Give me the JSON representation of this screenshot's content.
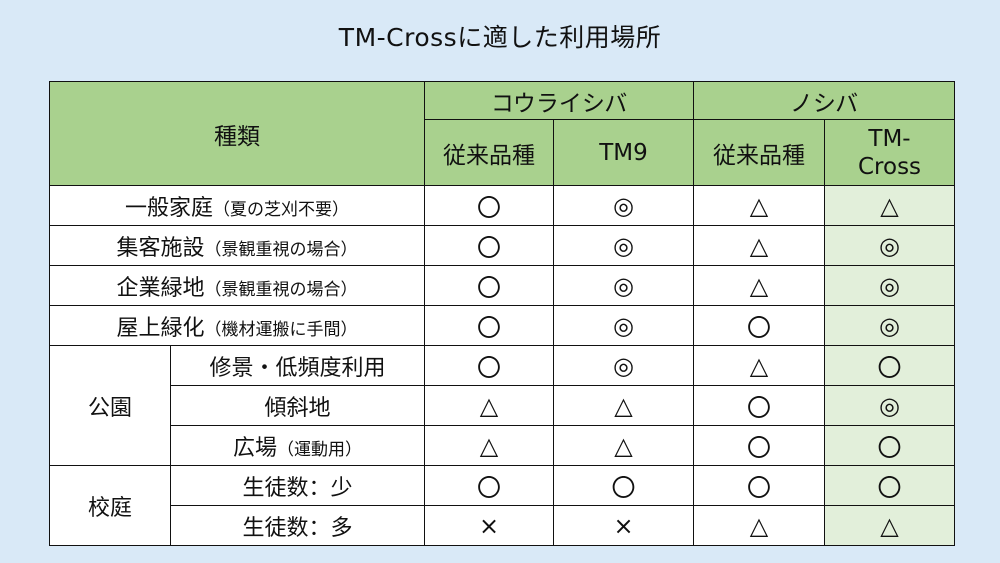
{
  "title": "TM-Crossに適した利用場所",
  "header": {
    "category_label": "種類",
    "group_korai": "コウライシバ",
    "group_noshiba": "ノシバ",
    "col_korai_conventional": "従来品種",
    "col_tm9": "TM9",
    "col_noshiba_conventional": "従来品種",
    "col_tmcross_line1": "TM-",
    "col_tmcross_line2": "Cross"
  },
  "rows": [
    {
      "label": "一般家庭",
      "note": "（夏の芝刈不要）",
      "values": [
        "〇",
        "◎",
        "△",
        "△"
      ]
    },
    {
      "label": "集客施設",
      "note": "（景観重視の場合）",
      "values": [
        "〇",
        "◎",
        "△",
        "◎"
      ]
    },
    {
      "label": "企業緑地",
      "note": "（景観重視の場合）",
      "values": [
        "〇",
        "◎",
        "△",
        "◎"
      ]
    },
    {
      "label": "屋上緑化",
      "note": "（機材運搬に手間）",
      "values": [
        "〇",
        "◎",
        "〇",
        "◎"
      ]
    }
  ],
  "park": {
    "group": "公園",
    "rows": [
      {
        "label": "修景・低頻度利用",
        "note": "",
        "values": [
          "〇",
          "◎",
          "△",
          "〇"
        ]
      },
      {
        "label": "傾斜地",
        "note": "",
        "values": [
          "△",
          "△",
          "〇",
          "◎"
        ]
      },
      {
        "label": "広場",
        "note": "（運動用）",
        "values": [
          "△",
          "△",
          "〇",
          "〇"
        ]
      }
    ]
  },
  "school": {
    "group": "校庭",
    "rows": [
      {
        "label": "生徒数：少",
        "note": "",
        "values": [
          "〇",
          "〇",
          "〇",
          "〇"
        ]
      },
      {
        "label": "生徒数：多",
        "note": "",
        "values": [
          "×",
          "×",
          "△",
          "△"
        ]
      }
    ]
  },
  "colors": {
    "background": "#d9e9f7",
    "header_green": "#a9d18e",
    "tmcross_highlight": "#e2efda"
  }
}
